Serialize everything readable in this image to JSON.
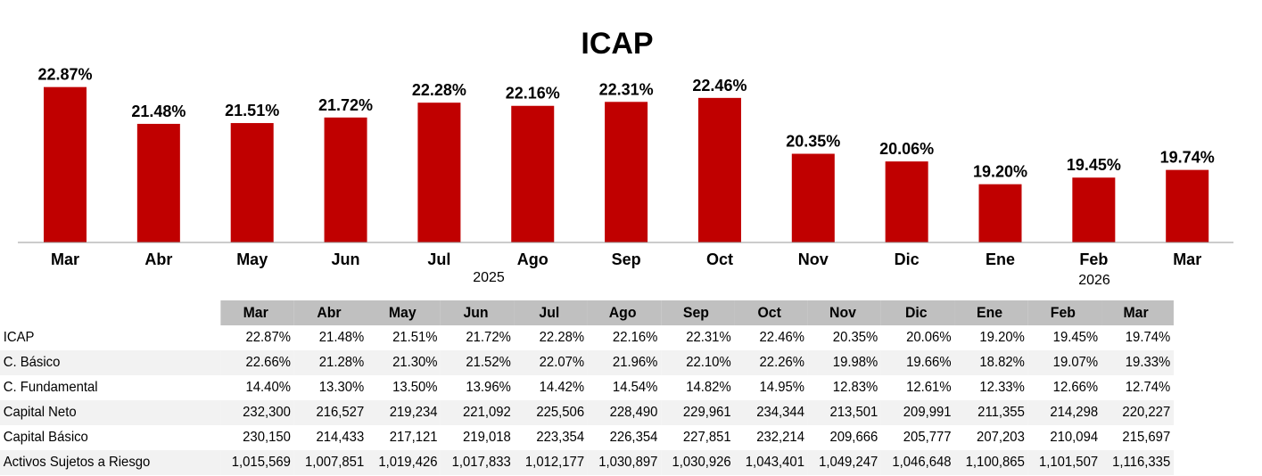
{
  "chart_data": {
    "type": "bar",
    "title": "ICAP",
    "categories": [
      "Mar",
      "Abr",
      "May",
      "Jun",
      "Jul",
      "Ago",
      "Sep",
      "Oct",
      "Nov",
      "Dic",
      "Ene",
      "Feb",
      "Mar"
    ],
    "year_labels": [
      {
        "label": "2025",
        "under": "Jul–Ago"
      },
      {
        "label": "2026",
        "under": "Feb"
      }
    ],
    "values": [
      22.87,
      21.48,
      21.51,
      21.72,
      22.28,
      22.16,
      22.31,
      22.46,
      20.35,
      20.06,
      19.2,
      19.45,
      19.74
    ],
    "data_labels": [
      "22.87%",
      "21.48%",
      "21.51%",
      "21.72%",
      "22.28%",
      "22.16%",
      "22.31%",
      "22.46%",
      "20.35%",
      "20.06%",
      "19.20%",
      "19.45%",
      "19.74%"
    ],
    "ylim": [
      17,
      24
    ],
    "grid": false,
    "color": "#c00000",
    "xlabel": "",
    "ylabel": ""
  },
  "table": {
    "headers": [
      "Mar",
      "Abr",
      "May",
      "Jun",
      "Jul",
      "Ago",
      "Sep",
      "Oct",
      "Nov",
      "Dic",
      "Ene",
      "Feb",
      "Mar"
    ],
    "rows": [
      {
        "label": "ICAP",
        "values": [
          "22.87%",
          "21.48%",
          "21.51%",
          "21.72%",
          "22.28%",
          "22.16%",
          "22.31%",
          "22.46%",
          "20.35%",
          "20.06%",
          "19.20%",
          "19.45%",
          "19.74%"
        ]
      },
      {
        "label": "C. Básico",
        "values": [
          "22.66%",
          "21.28%",
          "21.30%",
          "21.52%",
          "22.07%",
          "21.96%",
          "22.10%",
          "22.26%",
          "19.98%",
          "19.66%",
          "18.82%",
          "19.07%",
          "19.33%"
        ]
      },
      {
        "label": "C. Fundamental",
        "values": [
          "14.40%",
          "13.30%",
          "13.50%",
          "13.96%",
          "14.42%",
          "14.54%",
          "14.82%",
          "14.95%",
          "12.83%",
          "12.61%",
          "12.33%",
          "12.66%",
          "12.74%"
        ]
      },
      {
        "label": "Capital Neto",
        "values": [
          "232,300",
          "216,527",
          "219,234",
          "221,092",
          "225,506",
          "228,490",
          "229,961",
          "234,344",
          "213,501",
          "209,991",
          "211,355",
          "214,298",
          "220,227"
        ]
      },
      {
        "label": "Capital Básico",
        "values": [
          "230,150",
          "214,433",
          "217,121",
          "219,018",
          "223,354",
          "226,354",
          "227,851",
          "232,214",
          "209,666",
          "205,777",
          "207,203",
          "210,094",
          "215,697"
        ]
      },
      {
        "label": "Activos Sujetos a Riesgo",
        "values": [
          "1,015,569",
          "1,007,851",
          "1,019,426",
          "1,017,833",
          "1,012,177",
          "1,030,897",
          "1,030,926",
          "1,043,401",
          "1,049,247",
          "1,046,648",
          "1,100,865",
          "1,101,507",
          "1,116,335"
        ]
      }
    ]
  }
}
